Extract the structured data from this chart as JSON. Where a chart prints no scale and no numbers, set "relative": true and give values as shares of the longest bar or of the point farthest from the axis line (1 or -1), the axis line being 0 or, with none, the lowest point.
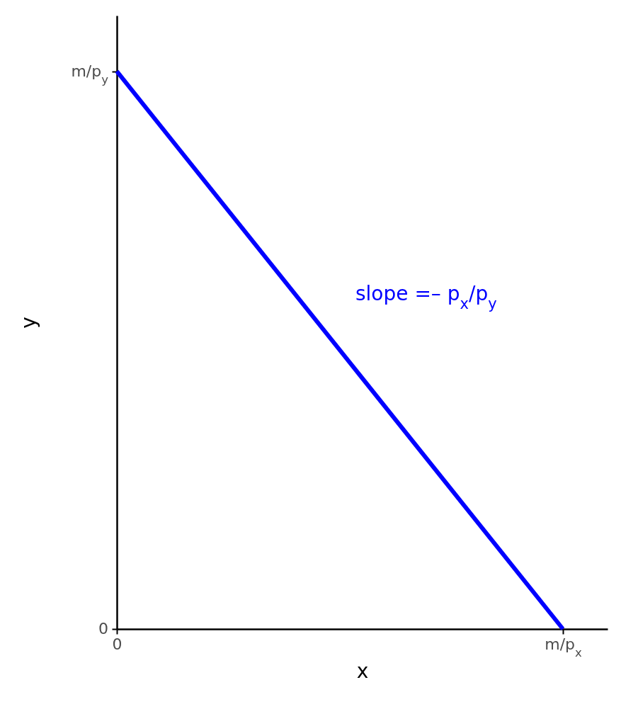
{
  "chart_data": {
    "type": "line",
    "xlabel": "x",
    "ylabel": "y",
    "categories": [
      "0",
      "m/p$_{x}$"
    ],
    "relative": true,
    "series": [
      {
        "color": "#0000ff",
        "values": [
          1,
          0
        ]
      }
    ],
    "annotations": [
      "slope =– p$_{x}$/p$_{y}$",
      {
        "text": "m/p$_{y}$",
        "x": "0",
        "y": 1
      },
      "0"
    ],
    "marker": "none",
    "line_style": "solid"
  }
}
